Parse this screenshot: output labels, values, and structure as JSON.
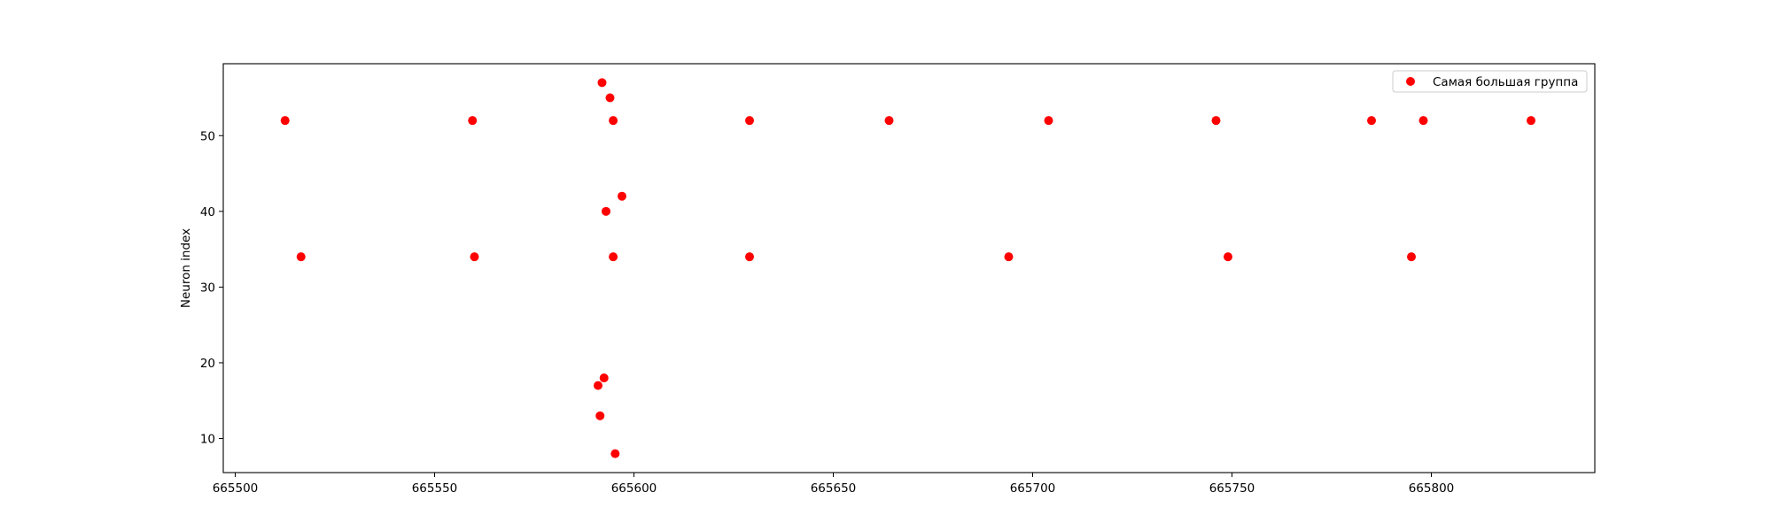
{
  "chart_data": {
    "type": "scatter",
    "title": "",
    "xlabel": "",
    "ylabel": "Neuron index",
    "xlim": [
      665497,
      665841
    ],
    "ylim": [
      5.5,
      59.5
    ],
    "xticks": [
      665500,
      665550,
      665600,
      665650,
      665700,
      665750,
      665800
    ],
    "yticks": [
      10,
      20,
      30,
      40,
      50
    ],
    "grid": false,
    "legend_position": "upper right",
    "series": [
      {
        "name": "Самая большая группа",
        "color": "#ff0000",
        "points": [
          {
            "x": 665512.5,
            "y": 52
          },
          {
            "x": 665516.5,
            "y": 34
          },
          {
            "x": 665559.5,
            "y": 52
          },
          {
            "x": 665560,
            "y": 34
          },
          {
            "x": 665591,
            "y": 17
          },
          {
            "x": 665591.5,
            "y": 13
          },
          {
            "x": 665592,
            "y": 57
          },
          {
            "x": 665592.5,
            "y": 18
          },
          {
            "x": 665593,
            "y": 40
          },
          {
            "x": 665594,
            "y": 55
          },
          {
            "x": 665594.8,
            "y": 52
          },
          {
            "x": 665594.8,
            "y": 34
          },
          {
            "x": 665595.3,
            "y": 8
          },
          {
            "x": 665597,
            "y": 42
          },
          {
            "x": 665629,
            "y": 52
          },
          {
            "x": 665629,
            "y": 34
          },
          {
            "x": 665664,
            "y": 52
          },
          {
            "x": 665694,
            "y": 34
          },
          {
            "x": 665704,
            "y": 52
          },
          {
            "x": 665746,
            "y": 52
          },
          {
            "x": 665749,
            "y": 34
          },
          {
            "x": 665785,
            "y": 52
          },
          {
            "x": 665795,
            "y": 34
          },
          {
            "x": 665798,
            "y": 52
          },
          {
            "x": 665825,
            "y": 52
          }
        ]
      }
    ]
  }
}
